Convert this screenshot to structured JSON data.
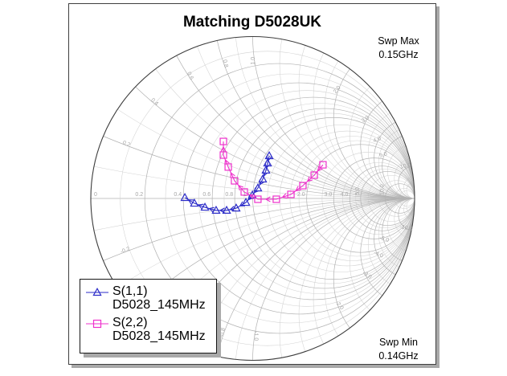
{
  "title": "Matching D5028UK",
  "annotations": {
    "swp_max_label": "Swp Max",
    "swp_max_value": "0.15GHz",
    "swp_min_label": "Swp Min",
    "swp_min_value": "0.14GHz"
  },
  "legend": {
    "entries": [
      {
        "label": "S(1,1)",
        "sublabel": "D5028_145MHz",
        "marker": "triangle",
        "color": "#2b2bc8"
      },
      {
        "label": "S(2,2)",
        "sublabel": "D5028_145MHz",
        "marker": "square",
        "color": "#ee30cc"
      }
    ]
  },
  "chart_data": {
    "type": "smith",
    "title": "Matching D5028UK",
    "sweep": {
      "min_GHz": 0.14,
      "max_GHz": 0.15
    },
    "grid": {
      "outer_circle_color": "#3c3c3c",
      "major_color": "#b2b2b2",
      "minor_color": "#d2d2d2",
      "label_color": "#a6a6a6",
      "resistance_major": [
        0.2,
        0.4,
        0.6,
        0.8,
        1.0,
        2.0,
        3.0,
        4.0,
        5.0,
        10.0
      ],
      "resistance_minor": [
        0.1,
        0.3,
        0.5,
        0.7,
        0.9,
        1.2,
        1.4,
        1.6,
        1.8,
        2.5,
        3.5,
        4.5,
        6,
        8,
        15,
        20
      ],
      "reactance_major": [
        0.2,
        0.4,
        0.6,
        0.8,
        1.0,
        2.0,
        3.0,
        4.0,
        5.0,
        10.0
      ],
      "reactance_minor": [
        0.1,
        0.3,
        0.5,
        0.7,
        0.9,
        1.2,
        1.4,
        1.6,
        1.8,
        2.5,
        3.5,
        4.5,
        6,
        8,
        15,
        20
      ],
      "resistance_labels": [
        "0",
        "0.2",
        "0.4",
        "0.6",
        "0.8",
        "1.0",
        "2.0",
        "3.0",
        "4.0",
        "5.0",
        "10.0"
      ],
      "reactance_labels_pos": [
        "0.2",
        "0.4",
        "0.6",
        "0.8",
        "1.0",
        "2.0",
        "3.0",
        "4.0",
        "5.0",
        "10.0"
      ],
      "reactance_labels_neg": [
        "-0.2",
        "-0.4",
        "-0.6",
        "-0.8",
        "-1.0",
        "-2.0",
        "-3.0",
        "-4.0",
        "-5.0",
        "-10.0"
      ]
    },
    "series": [
      {
        "name": "S(1,1)",
        "source": "D5028_145MHz",
        "marker": "triangle",
        "color": "#2b2bc8",
        "points_gamma": [
          [
            0.102,
            0.263
          ],
          [
            0.092,
            0.218
          ],
          [
            0.082,
            0.174
          ],
          [
            0.062,
            0.119
          ],
          [
            0.032,
            0.064
          ],
          [
            -0.002,
            0.02
          ],
          [
            -0.042,
            -0.025
          ],
          [
            -0.102,
            -0.06
          ],
          [
            -0.161,
            -0.074
          ],
          [
            -0.226,
            -0.074
          ],
          [
            -0.295,
            -0.055
          ],
          [
            -0.36,
            -0.03
          ],
          [
            -0.419,
            0.005
          ]
        ]
      },
      {
        "name": "S(2,2)",
        "source": "D5028_145MHz",
        "marker": "square",
        "color": "#ee30cc",
        "points_gamma": [
          [
            0.434,
            0.208
          ],
          [
            0.38,
            0.144
          ],
          [
            0.31,
            0.079
          ],
          [
            0.236,
            0.025
          ],
          [
            0.146,
            -0.005
          ],
          [
            0.032,
            -0.005
          ],
          [
            -0.052,
            0.04
          ],
          [
            -0.112,
            0.109
          ],
          [
            -0.151,
            0.194
          ],
          [
            -0.181,
            0.268
          ],
          [
            -0.181,
            0.352
          ]
        ]
      }
    ]
  }
}
